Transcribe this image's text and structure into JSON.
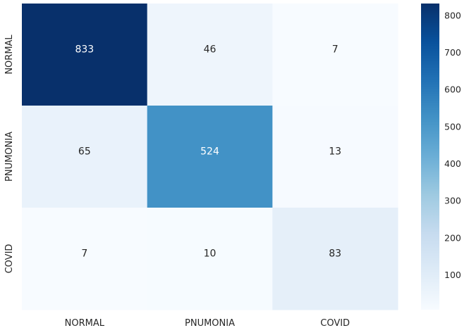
{
  "chart_data": {
    "type": "heatmap",
    "title": "",
    "xlabel": "",
    "ylabel": "",
    "x_categories": [
      "NORMAL",
      "PNUMONIA",
      "COVID"
    ],
    "y_categories": [
      "NORMAL",
      "PNUMONIA",
      "COVID"
    ],
    "values": [
      [
        833,
        46,
        7
      ],
      [
        65,
        524,
        13
      ],
      [
        7,
        10,
        83
      ]
    ],
    "colormap": "Blues",
    "color_range": [
      7,
      833
    ],
    "colorbar_ticks": [
      100,
      200,
      300,
      400,
      500,
      600,
      700,
      800
    ],
    "colors": {
      "low": "#f7fbff",
      "high": "#08306b",
      "text_dark": "#262626",
      "text_light": "#ffffff"
    }
  }
}
